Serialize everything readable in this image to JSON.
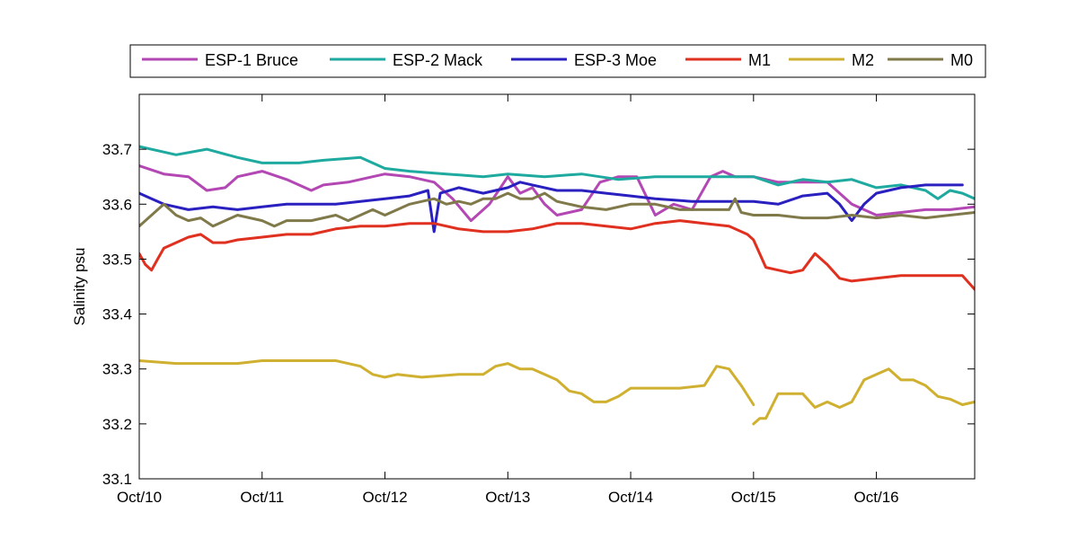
{
  "chart_data": {
    "type": "line",
    "xlabel": "",
    "ylabel": "Salinity psu",
    "xlim": [
      0,
      6.8
    ],
    "ylim": [
      33.1,
      33.8
    ],
    "grid": false,
    "legend_position": "top",
    "x_ticks": [
      0,
      1,
      2,
      3,
      4,
      5,
      6
    ],
    "x_tick_labels": [
      "Oct/10",
      "Oct/11",
      "Oct/12",
      "Oct/13",
      "Oct/14",
      "Oct/15",
      "Oct/16"
    ],
    "y_ticks": [
      33.1,
      33.2,
      33.3,
      33.4,
      33.5,
      33.6,
      33.7
    ],
    "y_tick_labels": [
      "33.1",
      "33.2",
      "33.3",
      "33.4",
      "33.5",
      "33.6",
      "33.7"
    ],
    "series": [
      {
        "name": "ESP-1 Bruce",
        "color": "#b347b3",
        "x": [
          0,
          0.2,
          0.4,
          0.55,
          0.7,
          0.8,
          1.0,
          1.2,
          1.4,
          1.5,
          1.7,
          1.9,
          2.0,
          2.2,
          2.4,
          2.55,
          2.7,
          2.85,
          3.0,
          3.1,
          3.2,
          3.3,
          3.4,
          3.6,
          3.75,
          3.9,
          4.05,
          4.2,
          4.35,
          4.5,
          4.65,
          4.75,
          4.85,
          5.0,
          5.2,
          5.4,
          5.6,
          5.8,
          6.0,
          6.2,
          6.4,
          6.6,
          6.8
        ],
        "y": [
          33.67,
          33.655,
          33.65,
          33.625,
          33.63,
          33.65,
          33.66,
          33.645,
          33.625,
          33.635,
          33.64,
          33.65,
          33.655,
          33.65,
          33.64,
          33.61,
          33.57,
          33.6,
          33.65,
          33.62,
          33.63,
          33.6,
          33.58,
          33.59,
          33.64,
          33.65,
          33.65,
          33.58,
          33.6,
          33.59,
          33.65,
          33.66,
          33.65,
          33.65,
          33.64,
          33.64,
          33.64,
          33.6,
          33.58,
          33.585,
          33.59,
          33.59,
          33.595
        ]
      },
      {
        "name": "ESP-2 Mack",
        "color": "#1faaa0",
        "x": [
          0,
          0.3,
          0.55,
          0.8,
          1.0,
          1.3,
          1.5,
          1.8,
          2.0,
          2.2,
          2.5,
          2.8,
          3.0,
          3.3,
          3.6,
          3.9,
          4.2,
          4.5,
          4.8,
          5.0,
          5.2,
          5.4,
          5.6,
          5.8,
          6.0,
          6.2,
          6.4,
          6.5,
          6.6,
          6.7,
          6.8
        ],
        "y": [
          33.705,
          33.69,
          33.7,
          33.685,
          33.675,
          33.675,
          33.68,
          33.685,
          33.665,
          33.66,
          33.655,
          33.65,
          33.655,
          33.65,
          33.655,
          33.645,
          33.65,
          33.65,
          33.65,
          33.65,
          33.635,
          33.645,
          33.64,
          33.645,
          33.63,
          33.635,
          33.625,
          33.61,
          33.625,
          33.62,
          33.61
        ]
      },
      {
        "name": "ESP-3 Moe",
        "color": "#2a20c0",
        "x": [
          0,
          0.1,
          0.2,
          0.4,
          0.6,
          0.8,
          1.0,
          1.2,
          1.4,
          1.6,
          1.8,
          2.0,
          2.2,
          2.35,
          2.4,
          2.45,
          2.6,
          2.8,
          3.0,
          3.1,
          3.2,
          3.4,
          3.6,
          3.8,
          4.0,
          4.2,
          4.5,
          4.8,
          5.0,
          5.2,
          5.4,
          5.6,
          5.7,
          5.8,
          5.9,
          6.0,
          6.2,
          6.4,
          6.6,
          6.7
        ],
        "y": [
          33.62,
          33.61,
          33.6,
          33.59,
          33.595,
          33.59,
          33.595,
          33.6,
          33.6,
          33.6,
          33.605,
          33.61,
          33.615,
          33.625,
          33.55,
          33.62,
          33.63,
          33.62,
          33.63,
          33.64,
          33.635,
          33.625,
          33.625,
          33.62,
          33.615,
          33.61,
          33.605,
          33.605,
          33.605,
          33.6,
          33.615,
          33.62,
          33.6,
          33.57,
          33.6,
          33.62,
          33.63,
          33.635,
          33.635,
          33.635
        ]
      },
      {
        "name": "M1",
        "color": "#e03020",
        "x": [
          0,
          0.05,
          0.1,
          0.15,
          0.2,
          0.3,
          0.4,
          0.5,
          0.6,
          0.7,
          0.8,
          1.0,
          1.2,
          1.4,
          1.6,
          1.8,
          2.0,
          2.2,
          2.4,
          2.6,
          2.8,
          3.0,
          3.2,
          3.4,
          3.6,
          3.8,
          4.0,
          4.2,
          4.4,
          4.6,
          4.8,
          4.95,
          5.0,
          5.1,
          5.2,
          5.3,
          5.4,
          5.5,
          5.6,
          5.7,
          5.8,
          6.0,
          6.2,
          6.4,
          6.6,
          6.7,
          6.8
        ],
        "y": [
          33.51,
          33.49,
          33.48,
          33.5,
          33.52,
          33.53,
          33.54,
          33.545,
          33.53,
          33.53,
          33.535,
          33.54,
          33.545,
          33.545,
          33.555,
          33.56,
          33.56,
          33.565,
          33.565,
          33.555,
          33.55,
          33.55,
          33.555,
          33.565,
          33.565,
          33.56,
          33.555,
          33.565,
          33.57,
          33.565,
          33.56,
          33.545,
          33.535,
          33.485,
          33.48,
          33.475,
          33.48,
          33.51,
          33.49,
          33.465,
          33.46,
          33.465,
          33.47,
          33.47,
          33.47,
          33.47,
          33.445
        ]
      },
      {
        "name": "M2",
        "color": "#d0b030",
        "x": [
          0,
          0.3,
          0.5,
          0.8,
          1.0,
          1.3,
          1.6,
          1.8,
          1.9,
          2.0,
          2.1,
          2.3,
          2.6,
          2.8,
          2.9,
          3.0,
          3.1,
          3.2,
          3.3,
          3.4,
          3.5,
          3.6,
          3.7,
          3.8,
          3.9,
          4.0,
          4.1,
          4.2,
          4.4,
          4.6,
          4.7,
          4.8,
          4.9,
          5.0,
          null,
          5.0,
          5.05,
          5.1,
          5.2,
          5.3,
          5.4,
          5.5,
          5.6,
          5.7,
          5.8,
          5.9,
          6.0,
          6.1,
          6.2,
          6.3,
          6.4,
          6.5,
          6.6,
          6.7,
          6.8
        ],
        "y": [
          33.315,
          33.31,
          33.31,
          33.31,
          33.315,
          33.315,
          33.315,
          33.305,
          33.29,
          33.285,
          33.29,
          33.285,
          33.29,
          33.29,
          33.305,
          33.31,
          33.3,
          33.3,
          33.29,
          33.28,
          33.26,
          33.255,
          33.24,
          33.24,
          33.25,
          33.265,
          33.265,
          33.265,
          33.265,
          33.27,
          33.305,
          33.3,
          33.27,
          33.235,
          null,
          33.2,
          33.21,
          33.21,
          33.255,
          33.255,
          33.255,
          33.23,
          33.24,
          33.23,
          33.24,
          33.28,
          33.29,
          33.3,
          33.28,
          33.28,
          33.27,
          33.25,
          33.245,
          33.235,
          33.24
        ]
      },
      {
        "name": "M0",
        "color": "#807a4a",
        "x": [
          0,
          0.1,
          0.2,
          0.3,
          0.4,
          0.5,
          0.6,
          0.7,
          0.8,
          1.0,
          1.1,
          1.2,
          1.4,
          1.6,
          1.7,
          1.8,
          1.9,
          2.0,
          2.1,
          2.2,
          2.4,
          2.5,
          2.6,
          2.7,
          2.8,
          2.9,
          3.0,
          3.1,
          3.2,
          3.3,
          3.4,
          3.5,
          3.6,
          3.8,
          4.0,
          4.2,
          4.4,
          4.6,
          4.8,
          4.85,
          4.9,
          5.0,
          5.2,
          5.4,
          5.6,
          5.8,
          6.0,
          6.2,
          6.4,
          6.6,
          6.8
        ],
        "y": [
          33.56,
          33.58,
          33.6,
          33.58,
          33.57,
          33.575,
          33.56,
          33.57,
          33.58,
          33.57,
          33.56,
          33.57,
          33.57,
          33.58,
          33.57,
          33.58,
          33.59,
          33.58,
          33.59,
          33.6,
          33.61,
          33.6,
          33.605,
          33.6,
          33.61,
          33.61,
          33.62,
          33.61,
          33.61,
          33.62,
          33.605,
          33.6,
          33.595,
          33.59,
          33.6,
          33.6,
          33.59,
          33.59,
          33.59,
          33.61,
          33.585,
          33.58,
          33.58,
          33.575,
          33.575,
          33.58,
          33.575,
          33.58,
          33.575,
          33.58,
          33.585
        ]
      }
    ]
  }
}
